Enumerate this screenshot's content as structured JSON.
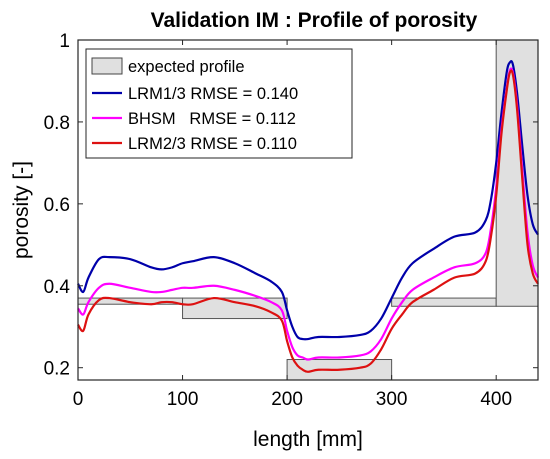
{
  "chart_data": {
    "type": "line",
    "title": "Validation IM : Profile of porosity",
    "xlabel": "length [mm]",
    "ylabel": "porosity [-]",
    "xlim": [
      0,
      440
    ],
    "ylim": [
      0.17,
      1.0
    ],
    "xticks": [
      0,
      100,
      200,
      300,
      400
    ],
    "yticks": [
      0.2,
      0.4,
      0.6,
      0.8,
      1
    ],
    "grid": false,
    "legend_position": "top-left",
    "expected_profile": {
      "name": "expected profile",
      "color": "#e0e0e0",
      "segments": [
        {
          "x0": 0,
          "x1": 100,
          "y0": 0.355,
          "y1": 0.37
        },
        {
          "x0": 100,
          "x1": 200,
          "y0": 0.32,
          "y1": 0.37
        },
        {
          "x0": 200,
          "x1": 300,
          "y0": 0.17,
          "y1": 0.22
        },
        {
          "x0": 300,
          "x1": 400,
          "y0": 0.35,
          "y1": 0.37
        },
        {
          "x0": 400,
          "x1": 440,
          "y0": 0.35,
          "y1": 1.0
        }
      ]
    },
    "x": [
      0,
      5,
      10,
      20,
      30,
      50,
      70,
      80,
      90,
      100,
      110,
      130,
      150,
      170,
      185,
      195,
      200,
      205,
      210,
      215,
      220,
      230,
      250,
      270,
      280,
      290,
      300,
      310,
      320,
      340,
      360,
      380,
      390,
      395,
      400,
      405,
      410,
      413,
      416,
      420,
      425,
      430,
      435,
      440
    ],
    "series": [
      {
        "name": "LRM1/3 RMSE = 0.140",
        "color": "#0000aa",
        "values": [
          0.405,
          0.385,
          0.42,
          0.465,
          0.47,
          0.465,
          0.445,
          0.44,
          0.445,
          0.455,
          0.46,
          0.47,
          0.455,
          0.43,
          0.41,
          0.385,
          0.34,
          0.3,
          0.275,
          0.27,
          0.27,
          0.275,
          0.275,
          0.28,
          0.29,
          0.32,
          0.37,
          0.42,
          0.455,
          0.49,
          0.52,
          0.53,
          0.56,
          0.61,
          0.7,
          0.82,
          0.92,
          0.945,
          0.94,
          0.87,
          0.74,
          0.62,
          0.55,
          0.525
        ]
      },
      {
        "name": "BHSM   RMSE = 0.112",
        "color": "#ff00ff",
        "values": [
          0.345,
          0.33,
          0.36,
          0.395,
          0.405,
          0.395,
          0.385,
          0.385,
          0.39,
          0.395,
          0.395,
          0.4,
          0.39,
          0.375,
          0.36,
          0.34,
          0.29,
          0.25,
          0.23,
          0.225,
          0.22,
          0.225,
          0.225,
          0.23,
          0.24,
          0.27,
          0.32,
          0.36,
          0.39,
          0.42,
          0.445,
          0.455,
          0.48,
          0.54,
          0.64,
          0.78,
          0.88,
          0.925,
          0.92,
          0.84,
          0.68,
          0.53,
          0.45,
          0.42
        ]
      },
      {
        "name": "LRM2/3 RMSE = 0.110",
        "color": "#dd1111",
        "values": [
          0.305,
          0.29,
          0.33,
          0.365,
          0.37,
          0.36,
          0.355,
          0.36,
          0.36,
          0.355,
          0.355,
          0.37,
          0.36,
          0.35,
          0.335,
          0.315,
          0.265,
          0.225,
          0.205,
          0.195,
          0.19,
          0.195,
          0.195,
          0.2,
          0.21,
          0.245,
          0.295,
          0.33,
          0.36,
          0.39,
          0.42,
          0.43,
          0.46,
          0.52,
          0.62,
          0.77,
          0.875,
          0.92,
          0.915,
          0.83,
          0.66,
          0.5,
          0.43,
          0.405
        ]
      }
    ]
  }
}
